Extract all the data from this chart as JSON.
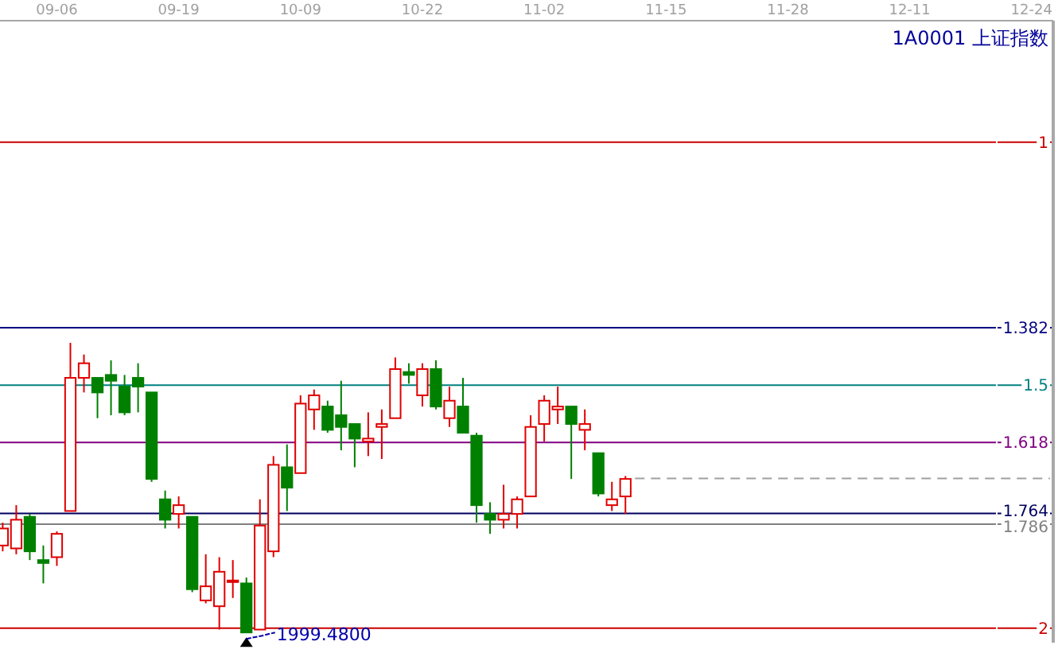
{
  "chart_data": {
    "type": "candlestick",
    "title": "1A0001 上证指数",
    "categories": [
      null,
      null,
      null,
      null,
      "09-06",
      null,
      null,
      null,
      null,
      null,
      null,
      null,
      null,
      "09-19",
      null,
      null,
      null,
      null,
      null,
      null,
      null,
      null,
      "10-09",
      null,
      null,
      null,
      null,
      null,
      null,
      null,
      null,
      "10-22",
      null,
      null,
      null,
      null,
      null,
      null,
      null,
      null,
      "11-02",
      null,
      null,
      null,
      null,
      null,
      null,
      null,
      null,
      "11-15",
      null,
      null,
      null,
      null,
      null,
      null,
      null,
      null,
      "11-28",
      null,
      null,
      null,
      null,
      null,
      null,
      null,
      null,
      "12-11",
      null,
      null,
      null,
      null,
      null,
      null,
      null,
      null,
      "12-24",
      null
    ],
    "ylim": [
      2.03,
      0.75
    ],
    "yticks": [
      1,
      1.382,
      1.5,
      1.618,
      1.764,
      1.786,
      2
    ],
    "ohlc": [
      [
        1.83,
        1.842,
        1.783,
        1.795
      ],
      [
        1.836,
        1.848,
        1.747,
        1.777
      ],
      [
        1.771,
        1.86,
        1.765,
        1.842
      ],
      [
        1.86,
        1.908,
        1.83,
        1.866
      ],
      [
        1.854,
        1.872,
        1.801,
        1.806
      ],
      [
        1.759,
        1.759,
        1.413,
        1.485
      ],
      [
        1.485,
        1.515,
        1.437,
        1.455
      ],
      [
        1.485,
        1.568,
        1.485,
        1.515
      ],
      [
        1.479,
        1.562,
        1.449,
        1.491
      ],
      [
        1.503,
        1.562,
        1.479,
        1.556
      ],
      [
        1.485,
        1.556,
        1.455,
        1.503
      ],
      [
        1.515,
        1.699,
        1.515,
        1.693
      ],
      [
        1.735,
        1.795,
        1.717,
        1.777
      ],
      [
        1.765,
        1.795,
        1.729,
        1.747
      ],
      [
        1.771,
        1.926,
        1.771,
        1.92
      ],
      [
        1.943,
        1.949,
        1.848,
        1.914
      ],
      [
        1.955,
        2.003,
        1.854,
        1.884
      ],
      [
        1.902,
        1.938,
        1.86,
        1.902
      ],
      [
        1.908,
        2.009,
        1.896,
        2.009
      ],
      [
        2.003,
        2.003,
        1.735,
        1.789
      ],
      [
        1.842,
        1.854,
        1.646,
        1.664
      ],
      [
        1.669,
        1.759,
        1.622,
        1.711
      ],
      [
        1.681,
        1.681,
        1.521,
        1.538
      ],
      [
        1.55,
        1.592,
        1.509,
        1.521
      ],
      [
        1.544,
        1.598,
        1.532,
        1.592
      ],
      [
        1.562,
        1.634,
        1.491,
        1.586
      ],
      [
        1.58,
        1.669,
        1.58,
        1.61
      ],
      [
        1.616,
        1.646,
        1.556,
        1.61
      ],
      [
        1.586,
        1.652,
        1.55,
        1.58
      ],
      [
        1.568,
        1.568,
        1.443,
        1.467
      ],
      [
        1.473,
        1.497,
        1.455,
        1.479
      ],
      [
        1.521,
        1.544,
        1.455,
        1.467
      ],
      [
        1.467,
        1.55,
        1.449,
        1.544
      ],
      [
        1.568,
        1.586,
        1.503,
        1.532
      ],
      [
        1.544,
        1.598,
        1.485,
        1.598
      ],
      [
        1.604,
        1.783,
        1.598,
        1.747
      ],
      [
        1.765,
        1.806,
        1.741,
        1.777
      ],
      [
        1.777,
        1.795,
        1.705,
        1.765
      ],
      [
        1.765,
        1.795,
        1.729,
        1.735
      ],
      [
        1.729,
        1.729,
        1.562,
        1.586
      ],
      [
        1.58,
        1.616,
        1.521,
        1.532
      ],
      [
        1.55,
        1.58,
        1.503,
        1.544
      ],
      [
        1.544,
        1.693,
        1.544,
        1.58
      ],
      [
        1.592,
        1.634,
        1.55,
        1.58
      ],
      [
        1.64,
        1.729,
        1.64,
        1.723
      ],
      [
        1.747,
        1.759,
        1.699,
        1.735
      ],
      [
        1.729,
        1.765,
        1.687,
        1.693
      ],
      null,
      null,
      null,
      null,
      null,
      null,
      null,
      null,
      null,
      null,
      null,
      null,
      null,
      null,
      null,
      null,
      null,
      null,
      null,
      null,
      null,
      null,
      null,
      null,
      null,
      null,
      null,
      null,
      null,
      null,
      null
    ],
    "ref_lines": [
      {
        "axis": "y",
        "value": 1,
        "color": "#cc0000"
      },
      {
        "axis": "y",
        "value": 1.382,
        "color": "#000080"
      },
      {
        "axis": "y",
        "value": 1.5,
        "color": "#008080"
      },
      {
        "axis": "y",
        "value": 1.618,
        "color": "#800080"
      },
      {
        "axis": "y",
        "value": 1.764,
        "color": "#000060"
      },
      {
        "axis": "y",
        "value": 1.786,
        "color": "#808080"
      },
      {
        "axis": "y",
        "value": 2,
        "color": "#cc0000"
      },
      {
        "axis": "y",
        "value": 1.692,
        "color": "#a0a0a0",
        "line_style": "dashed"
      }
    ],
    "annotations": [
      {
        "text": "1999.4800",
        "y": 2.009
      }
    ]
  }
}
